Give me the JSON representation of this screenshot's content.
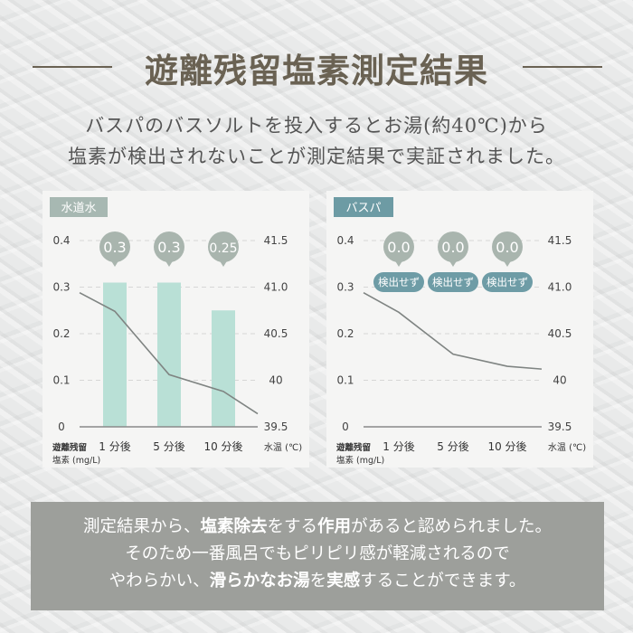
{
  "title": "遊離残留塩素測定結果",
  "subtitle": [
    "バスパのバスソルトを投入するとお湯(約40℃)から",
    "塩素が検出されないことが測定結果で実証されました。"
  ],
  "colors": {
    "title": "#6a6253",
    "bar": "#b9e0d6",
    "bubble": "#a9b5ae",
    "pill": "#6e9ca6",
    "line": "#7f8482",
    "note_bg": "#9d9f9b"
  },
  "chart_data": [
    {
      "type": "bar+line",
      "tag": "水道水",
      "tag_color": "#a7b8b2",
      "categories": [
        "1 分後",
        "5 分後",
        "10 分後"
      ],
      "values": [
        0.3,
        0.3,
        0.25
      ],
      "value_labels": [
        "0.3",
        "0.3",
        "0.25"
      ],
      "pill_labels": [],
      "left_axis": {
        "label": [
          "遊離残留",
          "塩素 (mg/L)"
        ],
        "ylim": [
          0,
          0.4
        ],
        "ticks": [
          "0",
          "0.1",
          "0.2",
          "0.3",
          "0.4"
        ]
      },
      "right_axis": {
        "label": "水温 (℃)",
        "ylim": [
          39.5,
          41.5
        ],
        "ticks": [
          "39.5",
          "40",
          "40.5",
          "41.0",
          "41.5"
        ]
      },
      "temperature": {
        "start": 40.94,
        "values": [
          40.74,
          40.06,
          39.88
        ],
        "end": 39.64
      },
      "grid": true
    },
    {
      "type": "bar+line",
      "tag": "バスパ",
      "tag_color": "#6d9ba4",
      "categories": [
        "1 分後",
        "5 分後",
        "10 分後"
      ],
      "values": [
        0,
        0,
        0
      ],
      "value_labels": [
        "0.0",
        "0.0",
        "0.0"
      ],
      "pill_labels": [
        "検出せず",
        "検出せず",
        "検出せず"
      ],
      "left_axis": {
        "label": [
          "遊離残留",
          "塩素 (mg/L)"
        ],
        "ylim": [
          0,
          0.4
        ],
        "ticks": [
          "0",
          "0.1",
          "0.2",
          "0.3",
          "0.4"
        ]
      },
      "right_axis": {
        "label": "水温 (℃)",
        "ylim": [
          39.5,
          41.5
        ],
        "ticks": [
          "39.5",
          "40",
          "40.5",
          "41.0",
          "41.5"
        ]
      },
      "temperature": {
        "start": 40.94,
        "values": [
          40.73,
          40.28,
          40.15
        ],
        "end": 40.12
      },
      "grid": true
    }
  ],
  "note": [
    [
      [
        "測定結果から、",
        false
      ],
      [
        "塩素除去",
        true
      ],
      [
        "をする",
        false
      ],
      [
        "作用",
        true
      ],
      [
        "があると認められました。",
        false
      ]
    ],
    [
      [
        "そのため一番風呂でもピリピリ感が軽減されるので",
        false
      ]
    ],
    [
      [
        "やわらかい、",
        false
      ],
      [
        "滑らかな",
        true
      ],
      [
        "お湯",
        true
      ],
      [
        "を",
        false
      ],
      [
        "実感",
        true
      ],
      [
        "することができます。",
        false
      ]
    ]
  ]
}
